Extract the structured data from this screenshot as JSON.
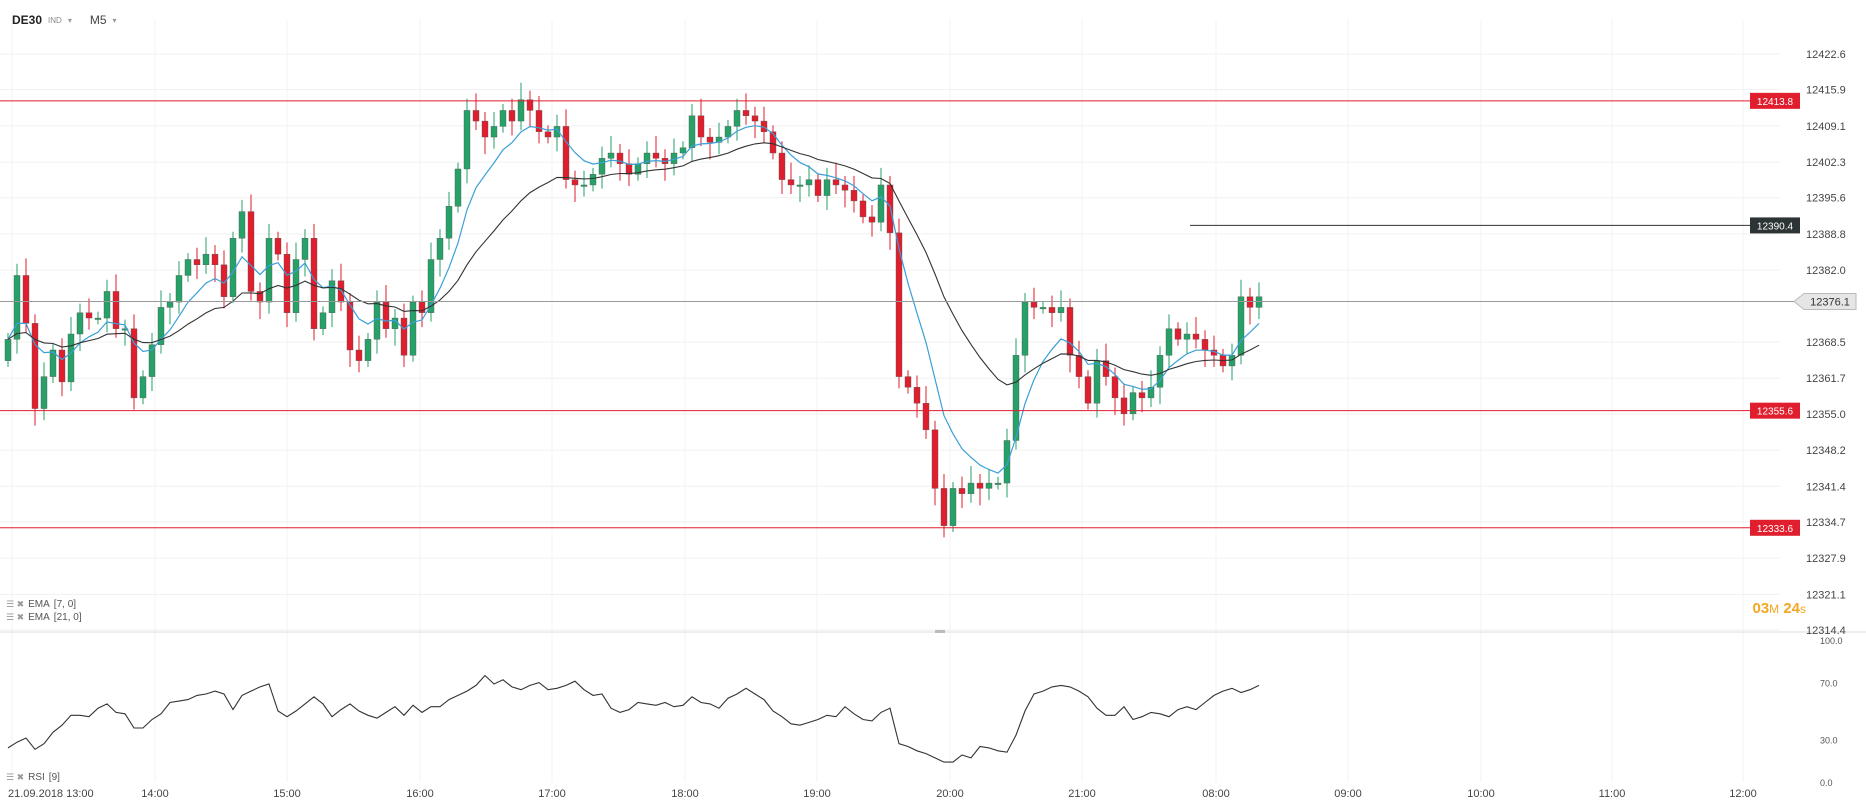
{
  "header": {
    "symbol": "DE30",
    "symbol_tag": "IND",
    "timeframe": "M5",
    "caret": "▾"
  },
  "indicators": {
    "ema7": {
      "label": "EMA",
      "params": "[7, 0]"
    },
    "ema21": {
      "label": "EMA",
      "params": "[21, 0]"
    },
    "rsi": {
      "label": "RSI",
      "params": "[9]"
    }
  },
  "timer": {
    "minutes": "03",
    "m_unit": "M",
    "seconds": "24",
    "s_unit": "s"
  },
  "colors": {
    "up": "#26a269",
    "down": "#e01e2e",
    "ema_fast": "#3a9fd8",
    "ema_slow": "#333333",
    "level": "#e01e2e",
    "current": "#999999"
  },
  "chart_data": [
    {
      "type": "candlestick",
      "yaxis": {
        "ticks": [
          "12422.6",
          "12415.9",
          "12409.1",
          "12402.3",
          "12395.6",
          "12388.8",
          "12382.0",
          "12376.1",
          "12368.5",
          "12361.7",
          "12355.0",
          "12348.2",
          "12341.4",
          "12334.7",
          "12327.9",
          "12321.1",
          "12314.4"
        ],
        "ylim": [
          12314.4,
          12422.6
        ]
      },
      "xaxis": {
        "ticks": [
          "21.09.2018  13:00",
          "14:00",
          "15:00",
          "16:00",
          "17:00",
          "18:00",
          "19:00",
          "20:00",
          "21:00",
          "08:00",
          "09:00",
          "10:00",
          "11:00",
          "12:00"
        ]
      },
      "levels": [
        {
          "value": 12413.8,
          "label": "12413.8",
          "color": "#e01e2e"
        },
        {
          "value": 12390.4,
          "label": "12390.4",
          "color": "#333333"
        },
        {
          "value": 12355.6,
          "label": "12355.6",
          "color": "#e01e2e"
        },
        {
          "value": 12333.6,
          "label": "12333.6",
          "color": "#e01e2e"
        }
      ],
      "current_price": {
        "value": 12376.1,
        "label": "12376.1"
      },
      "closes": [
        12369,
        12381,
        12372,
        12356,
        12362,
        12367,
        12361,
        12370,
        12374,
        12373,
        12373,
        12378,
        12371,
        12371,
        12358,
        12362,
        12368,
        12375,
        12376,
        12381,
        12384,
        12383,
        12385,
        12383,
        12377,
        12388,
        12393,
        12378,
        12376,
        12388,
        12385,
        12374,
        12384,
        12388,
        12371,
        12374,
        12380,
        12376,
        12367,
        12365,
        12369,
        12376,
        12371,
        12373,
        12366,
        12376,
        12374,
        12384,
        12388,
        12394,
        12401,
        12412,
        12410,
        12407,
        12409,
        12412,
        12410,
        12414,
        12412,
        12408,
        12407,
        12409,
        12399,
        12398,
        12398,
        12400,
        12403,
        12404,
        12402,
        12400,
        12402,
        12404,
        12403,
        12402,
        12404,
        12405,
        12411,
        12407,
        12406,
        12407,
        12409,
        12412,
        12411,
        12410,
        12408,
        12404,
        12399,
        12398,
        12398,
        12399,
        12396,
        12399,
        12398,
        12397,
        12395,
        12392,
        12391,
        12398,
        12389,
        12362,
        12360,
        12357,
        12352,
        12341,
        12334,
        12341,
        12340,
        12342,
        12341,
        12342,
        12342,
        12350,
        12366,
        12376,
        12375,
        12375,
        12374,
        12375,
        12366,
        12362,
        12357,
        12365,
        12362,
        12358,
        12355,
        12359,
        12358,
        12360,
        12366,
        12371,
        12369,
        12370,
        12369,
        12367,
        12366,
        12364,
        12366,
        12377,
        12375,
        12377
      ],
      "series": [
        {
          "name": "EMA [7, 0]"
        },
        {
          "name": "EMA [21, 0]"
        }
      ]
    },
    {
      "type": "line",
      "title": "RSI [9]",
      "yaxis": {
        "ticks": [
          "100.0",
          "70.0",
          "30.0",
          "0.0"
        ],
        "ylim": [
          0,
          100
        ]
      },
      "values": [
        24,
        28,
        31,
        23,
        27,
        35,
        40,
        47,
        47,
        46,
        52,
        55,
        49,
        48,
        38,
        38,
        44,
        48,
        56,
        57,
        58,
        61,
        62,
        64,
        62,
        51,
        61,
        64,
        67,
        69,
        50,
        46,
        50,
        55,
        60,
        55,
        46,
        51,
        55,
        50,
        47,
        45,
        49,
        53,
        47,
        54,
        49,
        53,
        53,
        58,
        61,
        64,
        68,
        75,
        69,
        72,
        67,
        65,
        68,
        70,
        65,
        66,
        68,
        71,
        65,
        61,
        62,
        52,
        49,
        51,
        56,
        55,
        54,
        56,
        53,
        54,
        60,
        56,
        55,
        52,
        59,
        62,
        66,
        62,
        58,
        50,
        46,
        41,
        40,
        42,
        44,
        47,
        46,
        53,
        48,
        44,
        43,
        49,
        52,
        27,
        25,
        22,
        20,
        17,
        14,
        14,
        19,
        17,
        25,
        24,
        22,
        21,
        33,
        50,
        62,
        64,
        67,
        68,
        67,
        64,
        60,
        52,
        47,
        47,
        53,
        44,
        46,
        49,
        48,
        46,
        51,
        53,
        51,
        56,
        61,
        64,
        66,
        63,
        65,
        68
      ]
    }
  ]
}
